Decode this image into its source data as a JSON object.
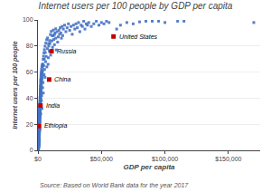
{
  "chart_data": {
    "type": "scatter",
    "title": "Internet users per 100 people by GDP per capita",
    "x_label": "GDP per capita",
    "y_label": "Internet users per 100 people",
    "source": "Source: Based on World Bank data for the year 2017",
    "xlim": [
      0,
      175000
    ],
    "xticks": [
      {
        "value": 0,
        "label": "$0"
      },
      {
        "value": 50000,
        "label": "$50,000"
      },
      {
        "value": 100000,
        "label": "$100,000"
      },
      {
        "value": 150000,
        "label": "$150,000"
      }
    ],
    "ylim": [
      0,
      100
    ],
    "yticks": [
      0,
      20,
      40,
      60,
      80,
      100
    ],
    "grid": "y",
    "series": [
      {
        "color": "#4472c4",
        "marker": "square",
        "x": [
          400,
          430,
          460,
          490,
          510,
          530,
          550,
          570,
          590,
          610,
          630,
          650,
          670,
          690,
          710,
          730,
          750,
          768,
          780,
          800,
          820,
          840,
          860,
          880,
          900,
          920,
          940,
          960,
          980,
          1000,
          1020,
          1040,
          1060,
          1080,
          1100,
          1120,
          1140,
          1160,
          1180,
          1200,
          1220,
          1240,
          1260,
          1280,
          1300,
          1320,
          1340,
          1360,
          1380,
          1400,
          1420,
          1440,
          1460,
          1480,
          1500,
          1520,
          1540,
          1560,
          1580,
          1600,
          1620,
          1640,
          1660,
          1680,
          1700,
          1720,
          1740,
          1760,
          1780,
          1800,
          1820,
          1840,
          1860,
          1880,
          1900,
          1920,
          1940,
          1960,
          1982,
          2000,
          2050,
          2100,
          2150,
          2200,
          2250,
          2300,
          2350,
          2400,
          2450,
          2500,
          2600,
          2700,
          2800,
          2900,
          3000,
          3100,
          3200,
          3300,
          3500,
          3700,
          4000,
          4200,
          4500,
          4800,
          5000,
          5200,
          5500,
          5800,
          6000,
          6500,
          7000,
          7500,
          8000,
          8200,
          8500,
          8827,
          9000,
          9500,
          10000,
          10720,
          11000,
          11500,
          12000,
          12500,
          13000,
          13500,
          14000,
          14500,
          15000,
          15500,
          16000,
          16500,
          17000,
          17500,
          18000,
          18500,
          19000,
          19500,
          20000,
          21000,
          22000,
          23000,
          24000,
          25000,
          26000,
          27000,
          28000,
          29000,
          30000,
          31000,
          32000,
          33000,
          34000,
          35000,
          36000,
          37000,
          38000,
          39000,
          40000,
          42000,
          44000,
          46000,
          48000,
          50000,
          52000,
          54000,
          56000,
          59532,
          62000,
          65000,
          70000,
          75000,
          80000,
          85000,
          90000,
          95000,
          100000,
          110000,
          115000,
          170000,
          350,
          370,
          390,
          410,
          440,
          470,
          500,
          520,
          540,
          560,
          580,
          600,
          620,
          640,
          660,
          680,
          700,
          720,
          740,
          760,
          790,
          810,
          830,
          850,
          870,
          890,
          910,
          930,
          950,
          970,
          990,
          1010,
          1030,
          1050,
          1070,
          1090,
          1110,
          1130,
          1150,
          1170,
          1190,
          1210,
          1230,
          1250,
          1270,
          1290,
          1310,
          1330,
          1350,
          1370,
          1390,
          1410,
          1430,
          1450,
          1470,
          1490,
          1510,
          1530,
          1550,
          1570,
          1590,
          1610,
          1630,
          1650,
          1670,
          1690,
          1710,
          1730,
          1750,
          1770,
          1790,
          1810,
          1830,
          1850,
          1870,
          1890,
          1910,
          1930,
          1950,
          1970,
          2020,
          2070,
          2120,
          2170,
          2220,
          2270,
          2320,
          2370,
          2420,
          2470,
          2550,
          2650,
          2750,
          2850,
          2950,
          3050,
          3150,
          3250,
          3400,
          3600,
          3800,
          4100,
          4400,
          4700,
          5100,
          5600,
          6200,
          6900,
          7600,
          8400,
          9100,
          9800,
          10500,
          11300,
          12100,
          13000,
          14000
        ],
        "values": [
          1.5,
          0.8,
          2.5,
          3.0,
          4.5,
          2.0,
          5.5,
          3.5,
          6.0,
          4.0,
          7.0,
          8.5,
          5.0,
          9.0,
          6.5,
          10.0,
          7.5,
          18.6,
          11.5,
          9.0,
          13.0,
          12.5,
          14.0,
          11.0,
          7.0,
          16.0,
          15.5,
          17.0,
          14.5,
          20.0,
          18.0,
          19.5,
          21.0,
          17.5,
          8.0,
          23.0,
          22.0,
          24.5,
          21.5,
          25.0,
          27.0,
          26.0,
          28.5,
          25.5,
          14.0,
          30.0,
          29.0,
          31.5,
          28.0,
          22.0,
          33.0,
          32.0,
          34.5,
          31.0,
          18.0,
          36.0,
          35.0,
          37.5,
          34.0,
          30.0,
          39.0,
          38.0,
          40.5,
          37.0,
          16.0,
          42.0,
          41.0,
          43.5,
          40.0,
          35.0,
          45.0,
          44.0,
          46.5,
          43.0,
          38.0,
          48.0,
          47.0,
          49.5,
          34.4,
          40.0,
          52.0,
          50.0,
          53.5,
          28.0,
          55.0,
          45.0,
          57.0,
          54.0,
          58.5,
          50.0,
          60.0,
          38.0,
          62.0,
          42.0,
          55.0,
          64.0,
          32.0,
          65.5,
          60.0,
          48.0,
          52.0,
          44.0,
          65.0,
          58.0,
          70.0,
          62.0,
          56.0,
          75.0,
          68.0,
          72.0,
          64.0,
          78.0,
          66.0,
          71.0,
          80.0,
          54.3,
          76.0,
          82.0,
          73.0,
          76.0,
          84.0,
          79.0,
          88.0,
          85.0,
          81.0,
          90.0,
          86.0,
          77.0,
          91.0,
          83.0,
          87.0,
          92.0,
          89.0,
          94.0,
          90.0,
          86.0,
          95.0,
          88.0,
          93.0,
          96.0,
          91.0,
          94.0,
          97.0,
          92.0,
          95.0,
          89.0,
          96.0,
          93.0,
          97.0,
          94.0,
          98.0,
          91.0,
          96.0,
          95.0,
          99.0,
          93.0,
          97.0,
          96.0,
          98.0,
          95.0,
          97.0,
          99.0,
          96.0,
          98.0,
          97.0,
          99.0,
          98.0,
          87.3,
          93.0,
          96.0,
          98.0,
          97.0,
          98.5,
          99.0,
          99.0,
          99.0,
          98.0,
          99.0,
          99.0,
          98.0,
          1.0,
          0.5,
          2.0,
          1.8,
          3.2,
          2.8,
          4.0,
          3.6,
          5.2,
          4.8,
          6.2,
          5.8,
          7.2,
          6.8,
          8.2,
          7.8,
          9.2,
          8.8,
          10.2,
          9.8,
          11.2,
          10.8,
          12.2,
          11.8,
          13.2,
          12.8,
          14.2,
          13.8,
          15.2,
          14.8,
          16.2,
          15.8,
          17.2,
          16.8,
          18.2,
          17.8,
          19.2,
          18.8,
          20.2,
          19.8,
          21.2,
          20.8,
          22.2,
          21.8,
          23.2,
          22.8,
          24.2,
          23.8,
          25.2,
          24.8,
          26.2,
          25.8,
          27.2,
          26.8,
          28.2,
          27.8,
          29.2,
          28.8,
          30.2,
          29.8,
          31.2,
          30.8,
          32.2,
          31.8,
          33.2,
          32.8,
          34.2,
          33.8,
          35.2,
          34.8,
          36.2,
          35.8,
          37.2,
          36.8,
          38.2,
          37.8,
          39.2,
          38.8,
          40.2,
          39.8,
          41.2,
          42.8,
          44.2,
          43.8,
          45.2,
          44.8,
          46.2,
          45.8,
          47.2,
          46.8,
          48.2,
          49.8,
          51.2,
          52.8,
          54.2,
          55.8,
          57.2,
          58.8,
          61.2,
          63.8,
          66.2,
          69.8,
          72.2,
          74.8,
          77.2,
          79.8,
          82.2,
          84.8,
          86.2,
          81.8,
          84.2,
          88.8,
          91.2,
          87.8,
          92.2,
          88.8,
          93.2
        ]
      },
      {
        "color": "#c00000",
        "marker": "square",
        "x": [
          59532,
          10720,
          8827,
          1982,
          768
        ],
        "values": [
          87.3,
          76.0,
          54.3,
          34.4,
          18.6
        ]
      }
    ],
    "annotations": [
      {
        "text": "United States",
        "x": 59532,
        "y": 87.3
      },
      {
        "text": "Russia",
        "x": 10720,
        "y": 76.0
      },
      {
        "text": "China",
        "x": 8827,
        "y": 54.3
      },
      {
        "text": "India",
        "x": 1982,
        "y": 34.4
      },
      {
        "text": "Ethiopia",
        "x": 768,
        "y": 18.6
      }
    ]
  }
}
